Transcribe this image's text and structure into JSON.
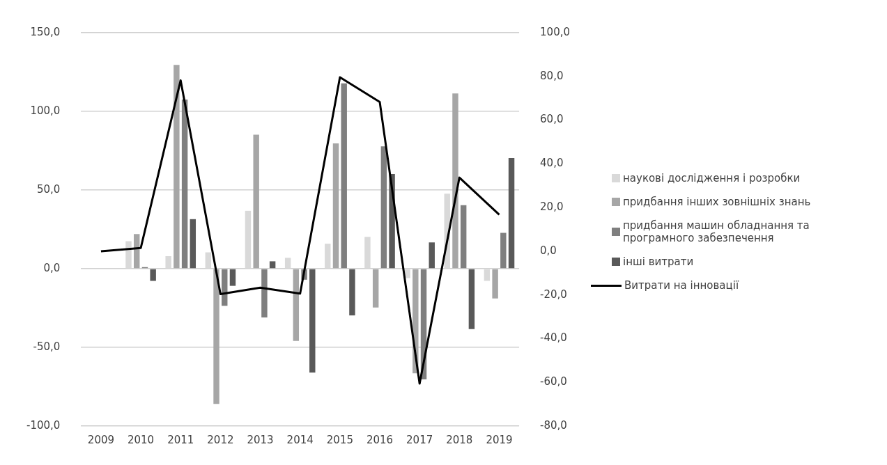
{
  "chart_data": {
    "type": "bar",
    "categories": [
      "2009",
      "2010",
      "2011",
      "2012",
      "2013",
      "2014",
      "2015",
      "2016",
      "2017",
      "2018",
      "2019"
    ],
    "series": [
      {
        "name": "наукові дослідження і розробки",
        "color": "#d9d9d9",
        "values": [
          null,
          17.5,
          8,
          10.4,
          36.8,
          6.9,
          15.9,
          20.2,
          -6,
          47.7,
          -7.7
        ]
      },
      {
        "name": "придбання інших зовнішніх знань",
        "color": "#a6a6a6",
        "values": [
          null,
          22,
          129.5,
          -85.9,
          85.2,
          -45.9,
          79.6,
          -24.7,
          -66.5,
          111.4,
          -18.9
        ]
      },
      {
        "name": "придбання машин обладнання та програмного забезпечення",
        "color": "#7f7f7f",
        "values": [
          null,
          1,
          107.5,
          -23.6,
          -31,
          -7,
          117.8,
          77.8,
          -70.3,
          40.4,
          22.8
        ]
      },
      {
        "name": "інші витрати",
        "color": "#595959",
        "values": [
          null,
          -7.7,
          31.5,
          -10.9,
          4.7,
          -66,
          -29.7,
          60.2,
          16.7,
          -38.4,
          70.3
        ]
      },
      {
        "name": "Витрати на інновації",
        "type": "line",
        "axis": "y2",
        "color": "#000000",
        "values": [
          0,
          1.5,
          78.2,
          -19.6,
          -16.7,
          -19.4,
          79.6,
          68.3,
          -60.6,
          33.7,
          16.7
        ]
      }
    ],
    "ylim": [
      -100,
      150
    ],
    "yticks": [
      {
        "value": -100,
        "label": "-100,0"
      },
      {
        "value": -50,
        "label": "-50,0"
      },
      {
        "value": 0,
        "label": "0,0"
      },
      {
        "value": 50,
        "label": "50,0"
      },
      {
        "value": 100,
        "label": "100,0"
      },
      {
        "value": 150,
        "label": "150,0"
      }
    ],
    "y2lim": [
      -80,
      100
    ],
    "y2ticks": [
      {
        "value": -80,
        "label": "-80,0"
      },
      {
        "value": -60,
        "label": "-60,0"
      },
      {
        "value": -40,
        "label": "-40,0"
      },
      {
        "value": -20,
        "label": "-20,0"
      },
      {
        "value": 0,
        "label": "0,0"
      },
      {
        "value": 20,
        "label": "20,0"
      },
      {
        "value": 40,
        "label": "40,0"
      },
      {
        "value": 60,
        "label": "60,0"
      },
      {
        "value": 80,
        "label": "80,0"
      },
      {
        "value": 100,
        "label": "100,0"
      }
    ],
    "grid": "y",
    "legend": "right",
    "marker": "none"
  }
}
